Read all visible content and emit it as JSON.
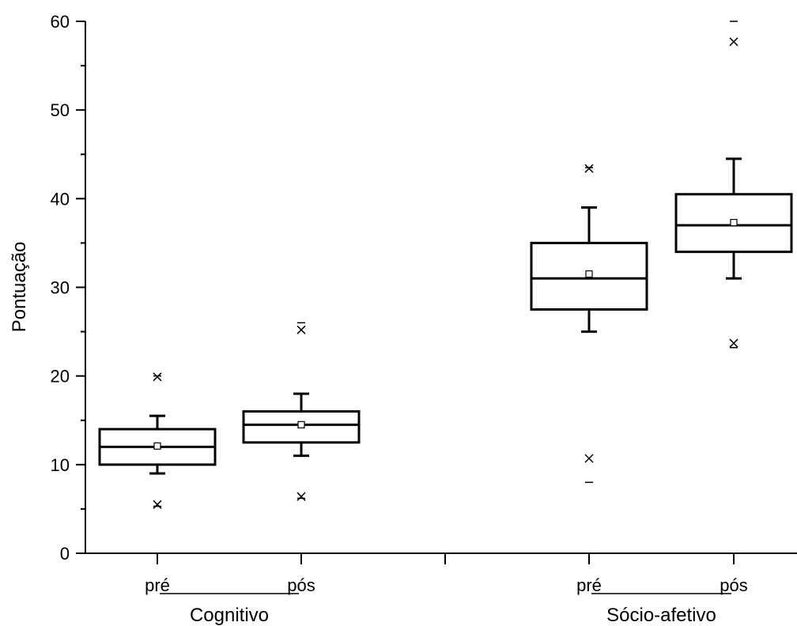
{
  "chart_data": {
    "type": "box",
    "title": "",
    "ylabel": "Pontuação",
    "ylim": [
      0,
      60
    ],
    "yticks": [
      0,
      10,
      20,
      30,
      40,
      50,
      60
    ],
    "groups": [
      {
        "name": "Cognitivo",
        "boxes": [
          {
            "label": "pré",
            "q1": 10,
            "median": 12,
            "q3": 14,
            "whisker_low": 9,
            "whisker_high": 15.5,
            "mean": 12.1,
            "x_high": 19.9,
            "x_low": 5.5,
            "min_mark": 5.3,
            "max_mark": 20
          },
          {
            "label": "pós",
            "q1": 12.5,
            "median": 14.5,
            "q3": 16,
            "whisker_low": 11,
            "whisker_high": 18,
            "mean": 14.5,
            "x_high": 25.2,
            "x_low": 6.4,
            "min_mark": 6.2,
            "max_mark": 26
          }
        ]
      },
      {
        "name": "Sócio-afetivo",
        "boxes": [
          {
            "label": "pré",
            "q1": 27.5,
            "median": 31,
            "q3": 35,
            "whisker_low": 25,
            "whisker_high": 39,
            "mean": 31.5,
            "x_high": 43.4,
            "x_low": 10.7,
            "min_mark": 8,
            "max_mark": 43.5
          },
          {
            "label": "pós",
            "q1": 34,
            "median": 37,
            "q3": 40.5,
            "whisker_low": 31,
            "whisker_high": 44.5,
            "mean": 37.3,
            "x_high": 57.7,
            "x_low": 23.7,
            "min_mark": 23.2,
            "max_mark": 60
          }
        ]
      }
    ]
  }
}
